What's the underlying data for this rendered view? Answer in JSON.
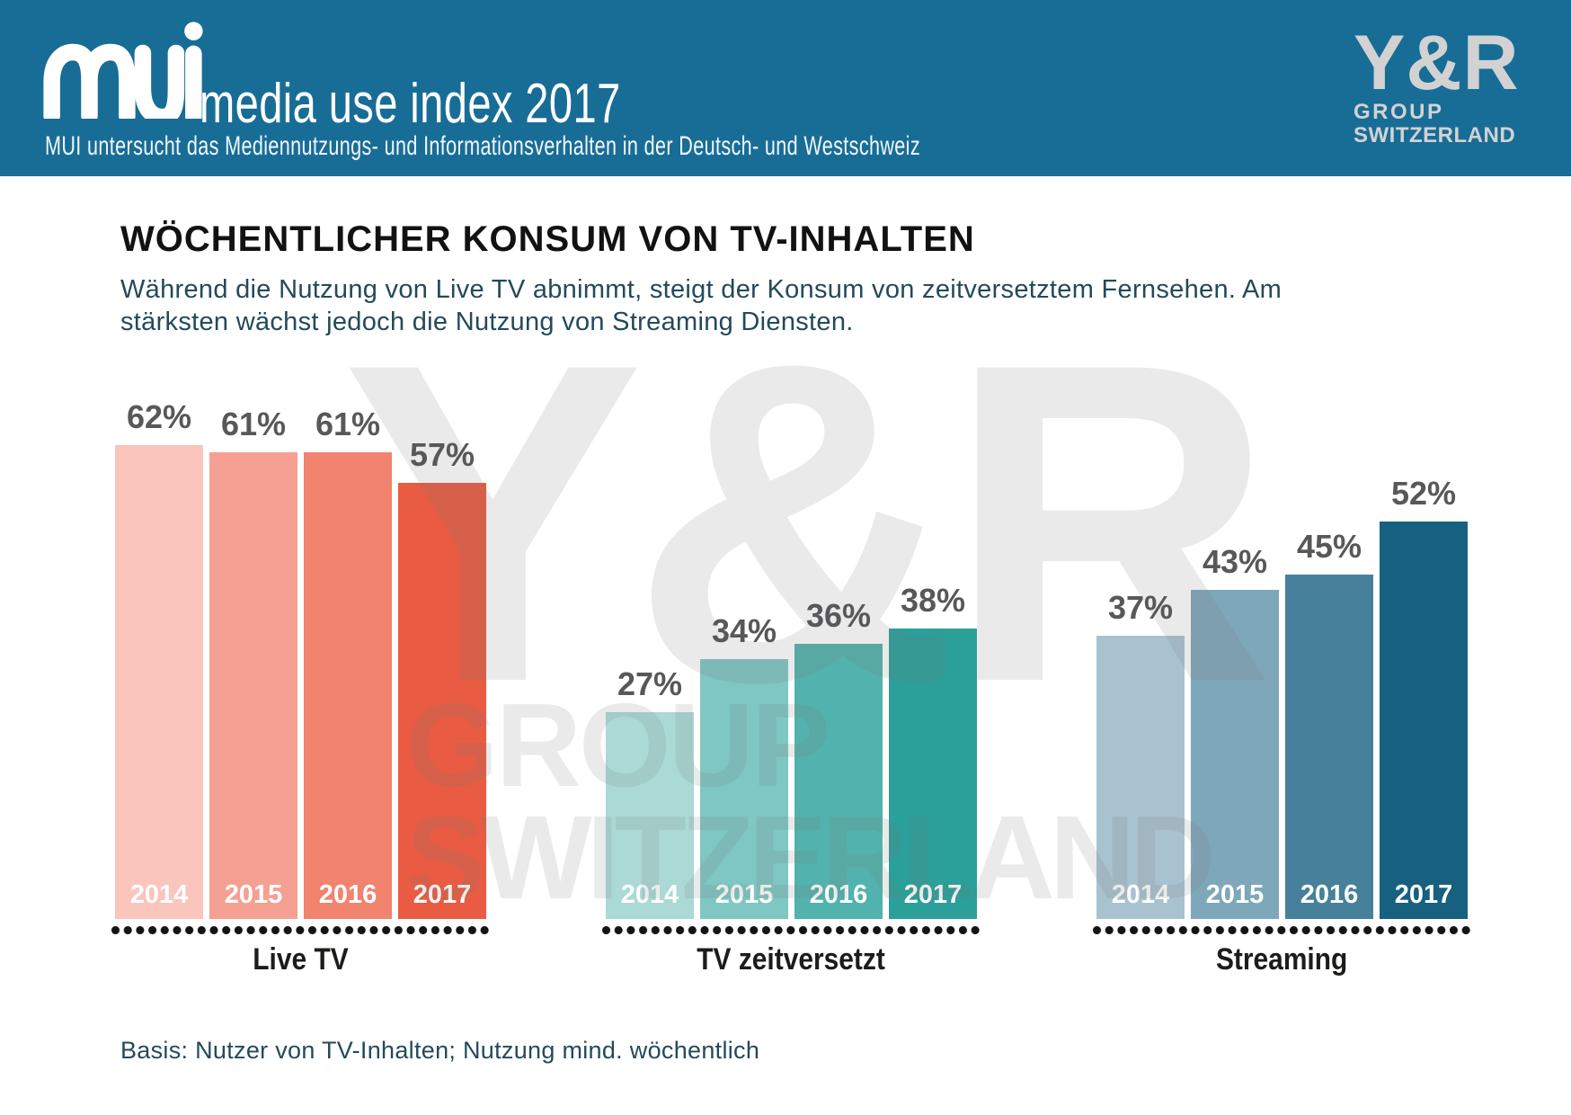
{
  "header": {
    "logo_text": "mui",
    "title": "media use index 2017",
    "subtitle": "MUI untersucht das Mediennutzungs- und Informationsverhalten in der Deutsch- und Westschweiz",
    "bg_color": "#186d96",
    "yr_logo": {
      "line1": "Y&R",
      "line2": "GROUP",
      "line3": "SWITZERLAND",
      "color": "#d2d2d2"
    }
  },
  "main": {
    "title": "WÖCHENTLICHER KONSUM VON TV-INHALTEN",
    "subtitle_line1": "Während die Nutzung von Live TV abnimmt, steigt der Konsum von zeitversetztem Fernsehen. Am",
    "subtitle_line2": "stärksten wächst jedoch die Nutzung von Streaming Diensten.",
    "footnote": "Basis: Nutzer von TV-Inhalten; Nutzung mind. wöchentlich",
    "title_color": "#121212",
    "subtitle_color": "#234a5b"
  },
  "watermark": {
    "line1": "Y&R",
    "line2": "GROUP",
    "line3": "SWITZERLAND"
  },
  "chart_data": {
    "type": "bar",
    "categories": [
      "2014",
      "2015",
      "2016",
      "2017"
    ],
    "unit": "%",
    "ylim": [
      0,
      100
    ],
    "grid": false,
    "legend": "none",
    "value_labels": "above bars",
    "series": [
      {
        "name": "Live TV",
        "values": [
          62,
          61,
          61,
          57
        ],
        "colors": [
          "#f9c5bc",
          "#f5a092",
          "#f1836f",
          "#e95c43"
        ]
      },
      {
        "name": "TV zeitversetzt",
        "values": [
          27,
          34,
          36,
          38
        ],
        "colors": [
          "#aad9d6",
          "#7ec7c3",
          "#52b2ad",
          "#2b9f9a"
        ]
      },
      {
        "name": "Streaming",
        "values": [
          37,
          43,
          45,
          52
        ],
        "colors": [
          "#a9c2cf",
          "#7ea7ba",
          "#46809b",
          "#17607f"
        ]
      }
    ],
    "value_label_color": "#58585a",
    "year_label_color": "#ffffff",
    "series_label_color": "#1c1c1a"
  }
}
